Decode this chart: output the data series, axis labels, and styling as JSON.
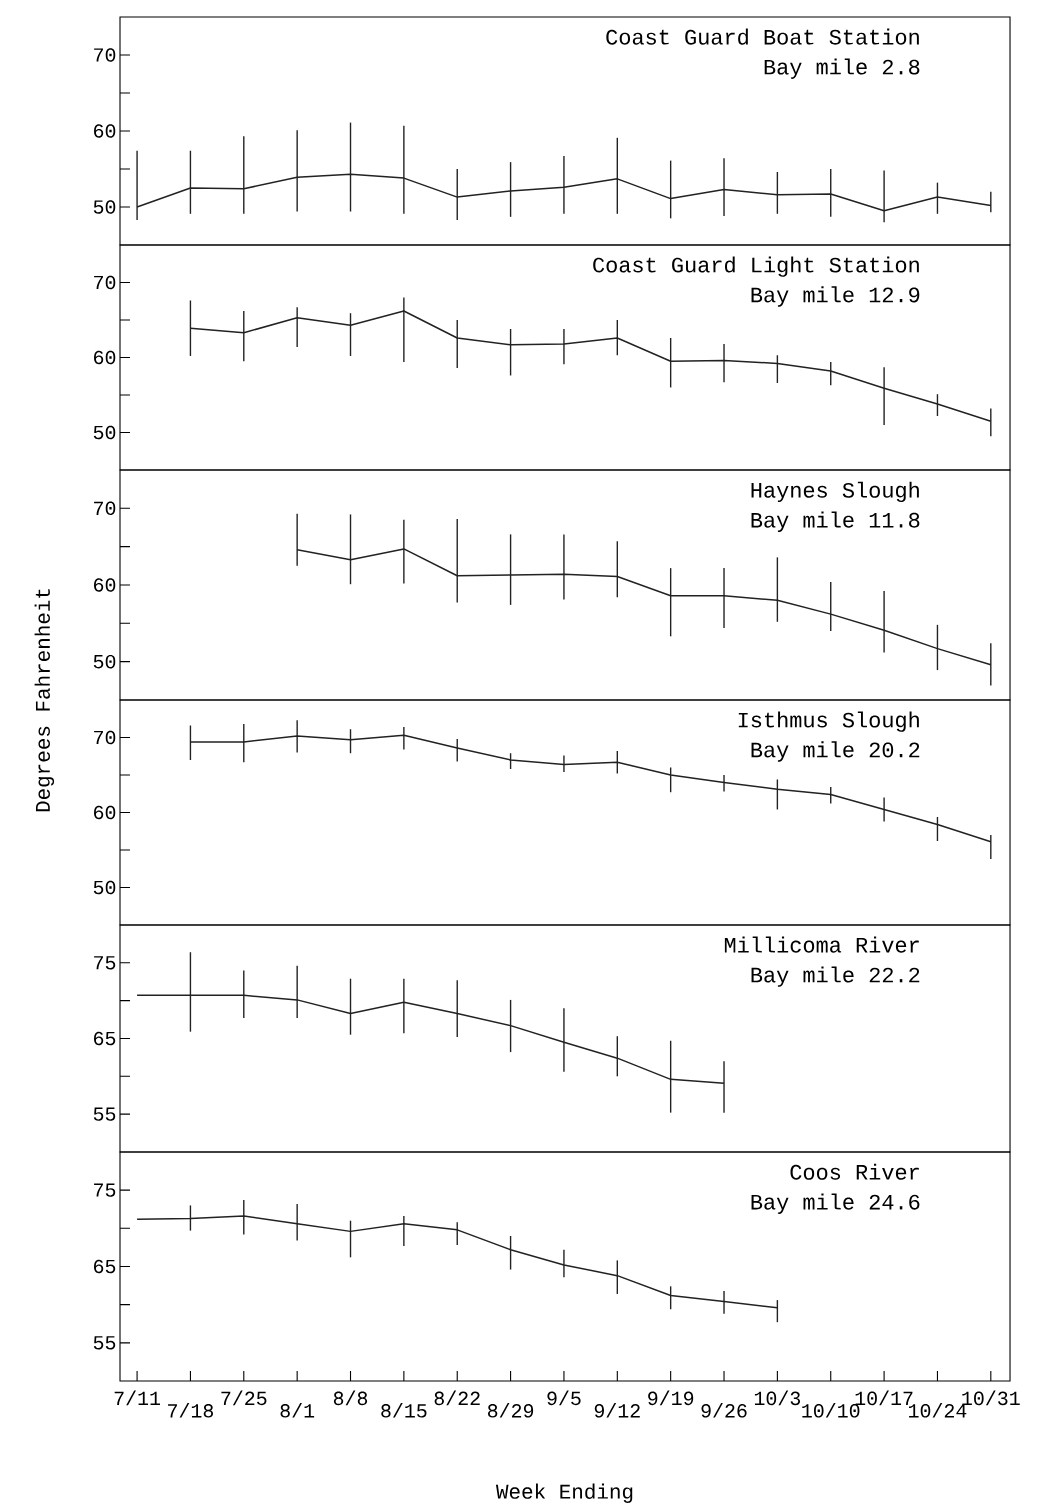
{
  "chart_data": [
    {
      "type": "line",
      "title": "Coast Guard Boat Station",
      "subtitle": "Bay mile 2.8",
      "color": "#222222",
      "tick_labels": "y",
      "categories": [
        null,
        null,
        null,
        null,
        null,
        null,
        null,
        null,
        null,
        null,
        null,
        null,
        null,
        null,
        null,
        null,
        null
      ],
      "values": [
        50.0,
        52.5,
        52.4,
        53.9,
        54.3,
        53.8,
        51.3,
        52.1,
        52.6,
        53.7,
        51.1,
        52.3,
        51.6,
        51.7,
        49.5,
        51.3,
        50.2
      ],
      "errors": [
        [
          48.3,
          57.4
        ],
        [
          49.1,
          57.4
        ],
        [
          49.1,
          59.3
        ],
        [
          49.4,
          60.1
        ],
        [
          49.4,
          61.1
        ],
        [
          49.1,
          60.7
        ],
        [
          48.3,
          55.0
        ],
        [
          48.7,
          55.9
        ],
        [
          49.1,
          56.7
        ],
        [
          49.1,
          59.1
        ],
        [
          48.5,
          56.1
        ],
        [
          48.8,
          56.4
        ],
        [
          49.1,
          54.6
        ],
        [
          48.7,
          55.0
        ],
        [
          48.0,
          54.8
        ],
        [
          49.1,
          53.2
        ],
        [
          49.3,
          52.0
        ]
      ],
      "ylim": [
        45,
        75
      ],
      "yticks": [
        50,
        {
          "value": 55,
          "label": null
        },
        60,
        {
          "value": 65,
          "label": null
        },
        70
      ]
    },
    {
      "type": "line",
      "title": "Coast Guard Light Station",
      "subtitle": "Bay mile 12.9",
      "color": "#222222",
      "tick_labels": "y",
      "categories": [
        null,
        null,
        null,
        null,
        null,
        null,
        null,
        null,
        null,
        null,
        null,
        null,
        null,
        null,
        null,
        null,
        null
      ],
      "values": [
        null,
        63.9,
        63.3,
        65.3,
        64.3,
        66.2,
        62.6,
        61.7,
        61.8,
        62.6,
        59.5,
        59.6,
        59.2,
        58.2,
        55.9,
        53.8,
        51.5
      ],
      "errors": [
        null,
        [
          60.2,
          67.6
        ],
        [
          59.5,
          66.2
        ],
        [
          61.4,
          66.7
        ],
        [
          60.2,
          65.9
        ],
        [
          59.4,
          68.0
        ],
        [
          58.6,
          65.0
        ],
        [
          57.6,
          63.8
        ],
        [
          59.1,
          63.8
        ],
        [
          60.3,
          65.0
        ],
        [
          56.0,
          62.6
        ],
        [
          56.7,
          61.8
        ],
        [
          56.6,
          60.3
        ],
        [
          56.3,
          59.4
        ],
        [
          51.0,
          58.7
        ],
        [
          52.2,
          55.1
        ],
        [
          49.5,
          53.2
        ]
      ],
      "ylim": [
        45,
        75
      ],
      "yticks": [
        50,
        {
          "value": 55,
          "label": null
        },
        60,
        {
          "value": 65,
          "label": null
        },
        70
      ]
    },
    {
      "type": "line",
      "title": "Haynes Slough",
      "subtitle": "Bay mile 11.8",
      "ylabel": "Degrees Fahrenheit",
      "color": "#222222",
      "tick_labels": "y",
      "categories": [
        null,
        null,
        null,
        null,
        null,
        null,
        null,
        null,
        null,
        null,
        null,
        null,
        null,
        null,
        null,
        null,
        null
      ],
      "values": [
        null,
        null,
        null,
        64.6,
        63.3,
        64.7,
        61.2,
        61.3,
        61.4,
        61.1,
        58.6,
        58.6,
        58.0,
        56.2,
        54.1,
        51.7,
        49.6
      ],
      "errors": [
        null,
        null,
        null,
        [
          62.5,
          69.3
        ],
        [
          60.1,
          69.2
        ],
        [
          60.2,
          68.5
        ],
        [
          57.7,
          68.6
        ],
        [
          57.4,
          66.6
        ],
        [
          58.1,
          66.6
        ],
        [
          58.4,
          65.7
        ],
        [
          53.3,
          62.2
        ],
        [
          54.4,
          62.2
        ],
        [
          55.2,
          63.6
        ],
        [
          54.0,
          60.4
        ],
        [
          51.2,
          59.2
        ],
        [
          48.9,
          54.8
        ],
        [
          46.9,
          52.4
        ]
      ],
      "ylim": [
        45,
        75
      ],
      "yticks": [
        50,
        {
          "value": 55,
          "label": null
        },
        60,
        {
          "value": 65,
          "label": null
        },
        70
      ]
    },
    {
      "type": "line",
      "title": "Isthmus Slough",
      "subtitle": "Bay mile 20.2",
      "color": "#222222",
      "tick_labels": "y",
      "categories": [
        null,
        null,
        null,
        null,
        null,
        null,
        null,
        null,
        null,
        null,
        null,
        null,
        null,
        null,
        null,
        null,
        null
      ],
      "values": [
        null,
        69.4,
        69.4,
        70.2,
        69.7,
        70.3,
        68.6,
        67.0,
        66.4,
        66.7,
        65.0,
        64.0,
        63.1,
        62.4,
        60.4,
        58.4,
        56.1
      ],
      "errors": [
        null,
        [
          67.0,
          71.6
        ],
        [
          66.7,
          71.8
        ],
        [
          68.0,
          72.3
        ],
        [
          67.9,
          71.1
        ],
        [
          68.4,
          71.4
        ],
        [
          66.8,
          69.8
        ],
        [
          65.8,
          67.9
        ],
        [
          65.4,
          67.6
        ],
        [
          65.2,
          68.2
        ],
        [
          62.7,
          66.0
        ],
        [
          62.8,
          65.0
        ],
        [
          60.4,
          64.4
        ],
        [
          61.2,
          63.4
        ],
        [
          58.8,
          62.0
        ],
        [
          56.2,
          59.4
        ],
        [
          53.8,
          57.0
        ]
      ],
      "ylim": [
        45,
        75
      ],
      "yticks": [
        50,
        {
          "value": 55,
          "label": null
        },
        60,
        {
          "value": 65,
          "label": null
        },
        70
      ]
    },
    {
      "type": "line",
      "title": "Millicoma River",
      "subtitle": "Bay mile 22.2",
      "color": "#222222",
      "tick_labels": "y",
      "categories": [
        null,
        null,
        null,
        null,
        null,
        null,
        null,
        null,
        null,
        null,
        null,
        null,
        null,
        null,
        null,
        null,
        null
      ],
      "values": [
        70.7,
        70.7,
        70.7,
        70.1,
        68.3,
        69.8,
        68.3,
        66.7,
        64.5,
        62.4,
        59.6,
        59.1,
        null,
        null,
        null,
        null,
        null
      ],
      "errors": [
        null,
        [
          65.9,
          76.4
        ],
        [
          67.7,
          74.0
        ],
        [
          67.7,
          74.6
        ],
        [
          65.5,
          72.9
        ],
        [
          65.7,
          72.9
        ],
        [
          65.2,
          72.7
        ],
        [
          63.2,
          70.1
        ],
        [
          60.6,
          69.0
        ],
        [
          60.0,
          65.3
        ],
        [
          55.2,
          64.7
        ],
        [
          55.2,
          62.0
        ],
        null,
        null,
        null,
        null,
        null
      ],
      "ylim": [
        50,
        80
      ],
      "yticks": [
        55,
        {
          "value": 60,
          "label": null
        },
        65,
        {
          "value": 70,
          "label": null
        },
        75
      ]
    },
    {
      "type": "line",
      "title": "Coos River",
      "subtitle": "Bay mile 24.6",
      "xlabel": "Week Ending",
      "color": "#222222",
      "categories": [
        "7/11",
        "7/18",
        "7/25",
        "8/1",
        "8/8",
        "8/15",
        "8/22",
        "8/29",
        "9/5",
        "9/12",
        "9/19",
        "9/26",
        "10/3",
        "10/10",
        "10/17",
        "10/24",
        "10/31"
      ],
      "values": [
        71.2,
        71.3,
        71.6,
        70.6,
        69.6,
        70.6,
        69.8,
        67.2,
        65.2,
        63.8,
        61.2,
        60.4,
        59.6,
        null,
        null,
        null,
        null
      ],
      "errors": [
        null,
        [
          69.7,
          73.0
        ],
        [
          69.2,
          73.7
        ],
        [
          68.4,
          73.2
        ],
        [
          66.2,
          71.0
        ],
        [
          67.7,
          71.6
        ],
        [
          67.8,
          70.8
        ],
        [
          64.6,
          69.0
        ],
        [
          63.6,
          67.2
        ],
        [
          61.4,
          65.8
        ],
        [
          59.4,
          62.4
        ],
        [
          58.8,
          61.8
        ],
        [
          57.7,
          60.6
        ],
        null,
        null,
        null,
        null
      ],
      "ylim": [
        50,
        80
      ],
      "yticks": [
        55,
        {
          "value": 60,
          "label": null
        },
        65,
        {
          "value": 70,
          "label": null
        },
        75
      ]
    }
  ]
}
